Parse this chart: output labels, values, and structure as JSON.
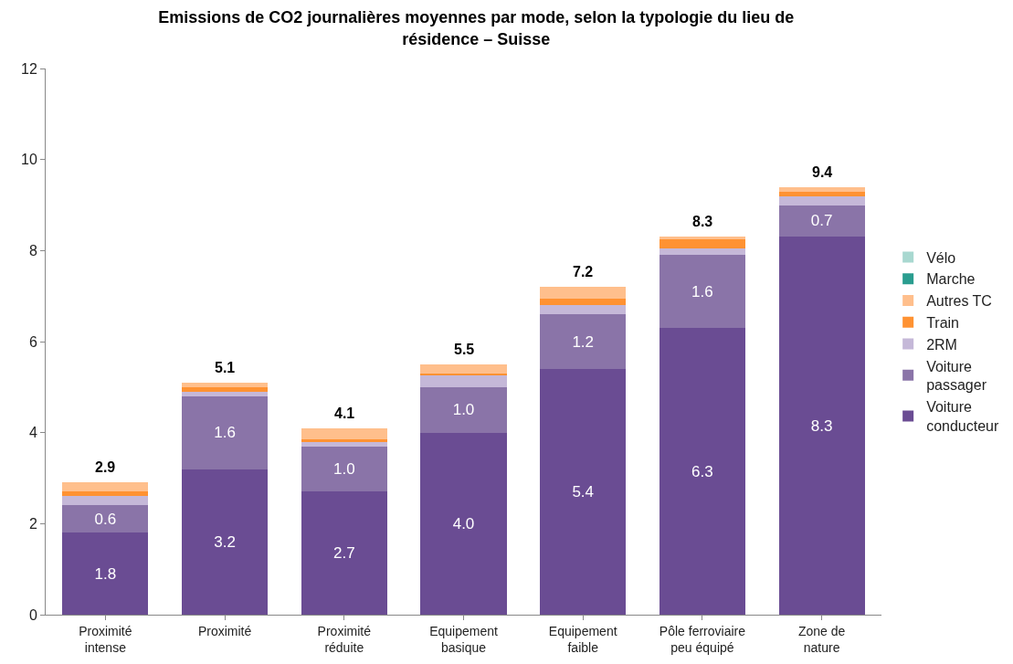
{
  "chart_data": {
    "type": "bar",
    "stacked": true,
    "title": "Emissions de CO2 journalières moyennes par mode, selon la typologie du lieu de résidence – Suisse",
    "categories": [
      "Proximité intense",
      "Proximité",
      "Proximité réduite",
      "Equipement basique",
      "Equipement faible",
      "Pôle ferroviaire peu équipé",
      "Zone de nature"
    ],
    "series": [
      {
        "name": "Voiture conducteur",
        "color": "#6a4c93",
        "values": [
          1.8,
          3.2,
          2.7,
          4.0,
          5.4,
          6.3,
          8.3
        ],
        "value_labels": [
          "1.8",
          "3.2",
          "2.7",
          "4.0",
          "5.4",
          "6.3",
          "8.3"
        ]
      },
      {
        "name": "Voiture passager",
        "color": "#8a74a8",
        "values": [
          0.6,
          1.6,
          1.0,
          1.0,
          1.2,
          1.6,
          0.7
        ],
        "value_labels": [
          "0.6",
          "1.6",
          "1.0",
          "1.0",
          "1.2",
          "1.6",
          "0.7"
        ]
      },
      {
        "name": "2RM",
        "color": "#c5b8d8",
        "values": [
          0.2,
          0.1,
          0.1,
          0.25,
          0.2,
          0.15,
          0.2
        ]
      },
      {
        "name": "Train",
        "color": "#ff9232",
        "values": [
          0.1,
          0.1,
          0.05,
          0.05,
          0.15,
          0.2,
          0.1
        ]
      },
      {
        "name": "Autres TC",
        "color": "#ffbf8c",
        "values": [
          0.2,
          0.1,
          0.25,
          0.2,
          0.25,
          0.05,
          0.1
        ]
      },
      {
        "name": "Marche",
        "color": "#2a9d8f",
        "values": [
          0,
          0,
          0,
          0,
          0,
          0,
          0
        ]
      },
      {
        "name": "Vélo",
        "color": "#a8d8d0",
        "values": [
          0,
          0,
          0,
          0,
          0,
          0,
          0
        ]
      }
    ],
    "totals": [
      "2.9",
      "5.1",
      "4.1",
      "5.5",
      "7.2",
      "8.3",
      "9.4"
    ],
    "ylim": [
      0,
      12
    ],
    "yticks": [
      0,
      2,
      4,
      6,
      8,
      10,
      12
    ],
    "grid": false,
    "legend": "right"
  }
}
